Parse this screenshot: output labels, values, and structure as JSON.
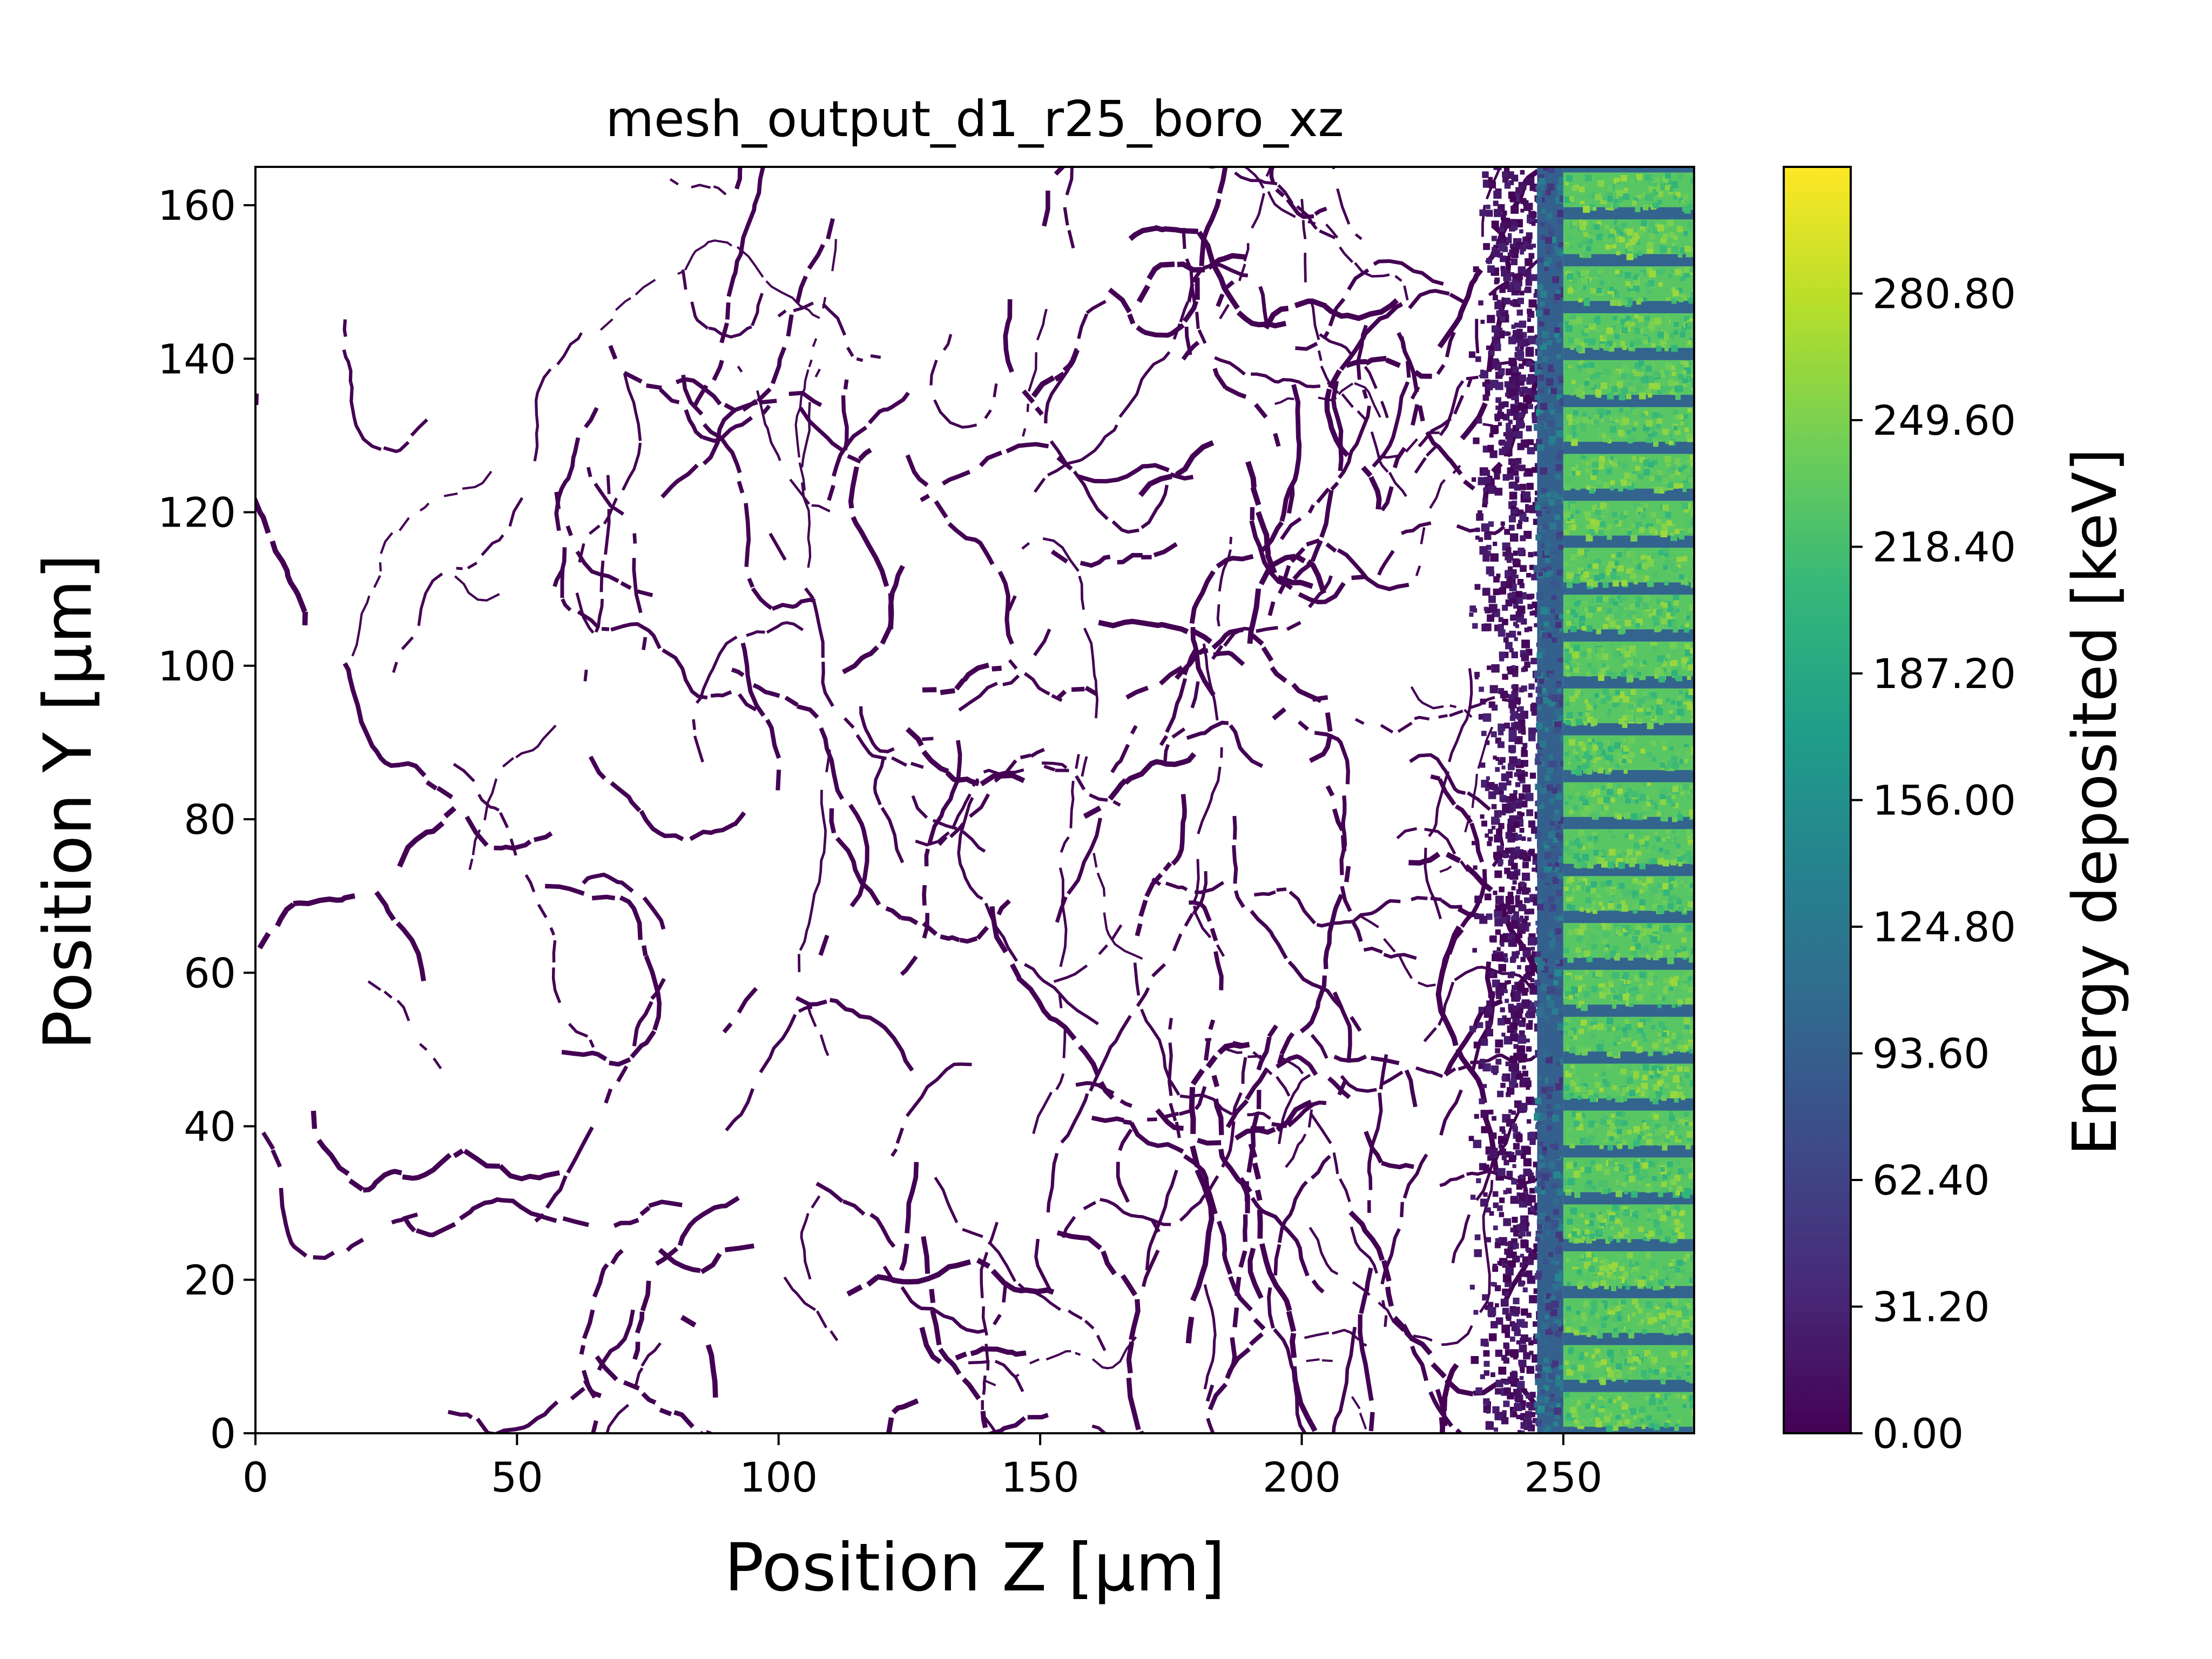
{
  "chart_data": {
    "type": "heatmap",
    "title": "mesh_output_d1_r25_boro_xz",
    "xlabel": "Position Z [μm]",
    "ylabel": "Position Y [μm]",
    "xlim": [
      0,
      275
    ],
    "ylim": [
      0,
      165
    ],
    "xticks": [
      0,
      50,
      100,
      150,
      200,
      250
    ],
    "yticks": [
      0,
      20,
      40,
      60,
      80,
      100,
      120,
      140,
      160
    ],
    "grid": false,
    "colorbar": {
      "label": "Energy deposited [keV]",
      "colormap": "viridis",
      "range": [
        0,
        312
      ],
      "ticks": [
        "0.00",
        "31.20",
        "62.40",
        "93.60",
        "124.80",
        "156.00",
        "187.20",
        "218.40",
        "249.60",
        "280.80"
      ],
      "colors": [
        "#440154",
        "#482878",
        "#3e4989",
        "#31688e",
        "#26828e",
        "#1f9e89",
        "#35b779",
        "#6ece58",
        "#b5de2b",
        "#fde725"
      ]
    },
    "regions": [
      {
        "name": "sparse-tracks",
        "z_range": [
          0,
          240
        ],
        "y_range": [
          0,
          165
        ],
        "energy_keV": [
          0,
          20
        ]
      },
      {
        "name": "dense-band",
        "z_range": [
          240,
          245
        ],
        "y_range": [
          0,
          165
        ],
        "energy_keV": [
          0,
          30
        ]
      },
      {
        "name": "blue-edge",
        "z_range": [
          245,
          250
        ],
        "y_range": [
          0,
          165
        ],
        "energy_keV": [
          80,
          110
        ]
      },
      {
        "name": "striped-block",
        "z_range": [
          250,
          275
        ],
        "y_range": [
          0,
          165
        ],
        "energy_keV": [
          200,
          260
        ],
        "stripe_count": 27,
        "stripe_gap_energy_keV": 100
      }
    ]
  }
}
